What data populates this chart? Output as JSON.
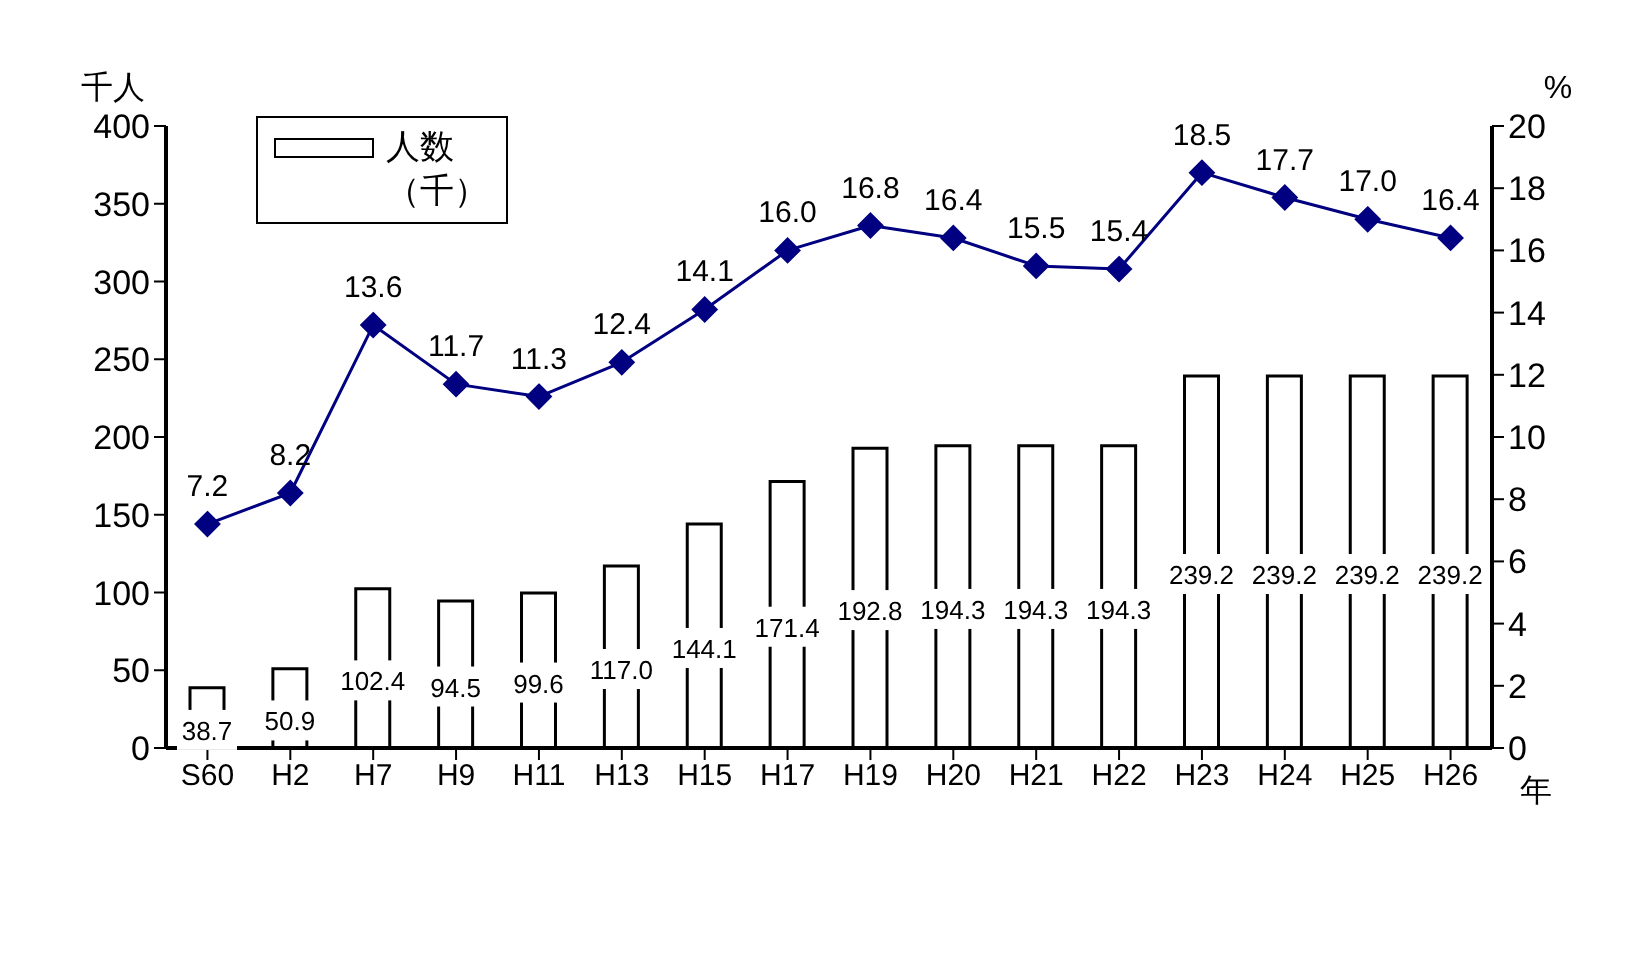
{
  "chart_data": {
    "type": "bar",
    "xlabel": "年",
    "ylabel": "千人",
    "y2label": "%",
    "categories": [
      "S60",
      "H2",
      "H7",
      "H9",
      "H11",
      "H13",
      "H15",
      "H17",
      "H19",
      "H20",
      "H21",
      "H22",
      "H23",
      "H24",
      "H25",
      "H26"
    ],
    "series": [
      {
        "name": "人数（千）",
        "color": "#ffffff",
        "values": [
          38.7,
          50.9,
          102.4,
          94.5,
          99.6,
          117.0,
          144.1,
          171.4,
          192.8,
          194.3,
          194.3,
          194.3,
          239.2,
          239.2,
          239.2,
          239.2
        ],
        "value_labels": [
          "38.7",
          "50.9",
          "102.4",
          "94.5",
          "99.6",
          "117.0",
          "144.1",
          "171.4",
          "192.8",
          "194.3",
          "194.3",
          "194.3",
          "239.2",
          "239.2",
          "239.2",
          "239.2"
        ]
      },
      {
        "type": "line",
        "axis": "y2",
        "color": "#000080",
        "marker": "diamond",
        "values": [
          7.2,
          8.2,
          13.6,
          11.7,
          11.3,
          12.4,
          14.1,
          16.0,
          16.8,
          16.4,
          15.5,
          15.4,
          18.5,
          17.7,
          17.0,
          16.4
        ],
        "value_labels": [
          "7.2",
          "8.2",
          "13.6",
          "11.7",
          "11.3",
          "12.4",
          "14.1",
          "16.0",
          "16.8",
          "16.4",
          "15.5",
          "15.4",
          "18.5",
          "17.7",
          "17.0",
          "16.4"
        ]
      }
    ],
    "ylim": [
      0,
      400
    ],
    "yticks": [
      0,
      50,
      100,
      150,
      200,
      250,
      300,
      350,
      400
    ],
    "y2lim": [
      0,
      20
    ],
    "y2ticks": [
      0,
      2,
      4,
      6,
      8,
      10,
      12,
      14,
      16,
      18,
      20
    ],
    "legend": "top left"
  }
}
